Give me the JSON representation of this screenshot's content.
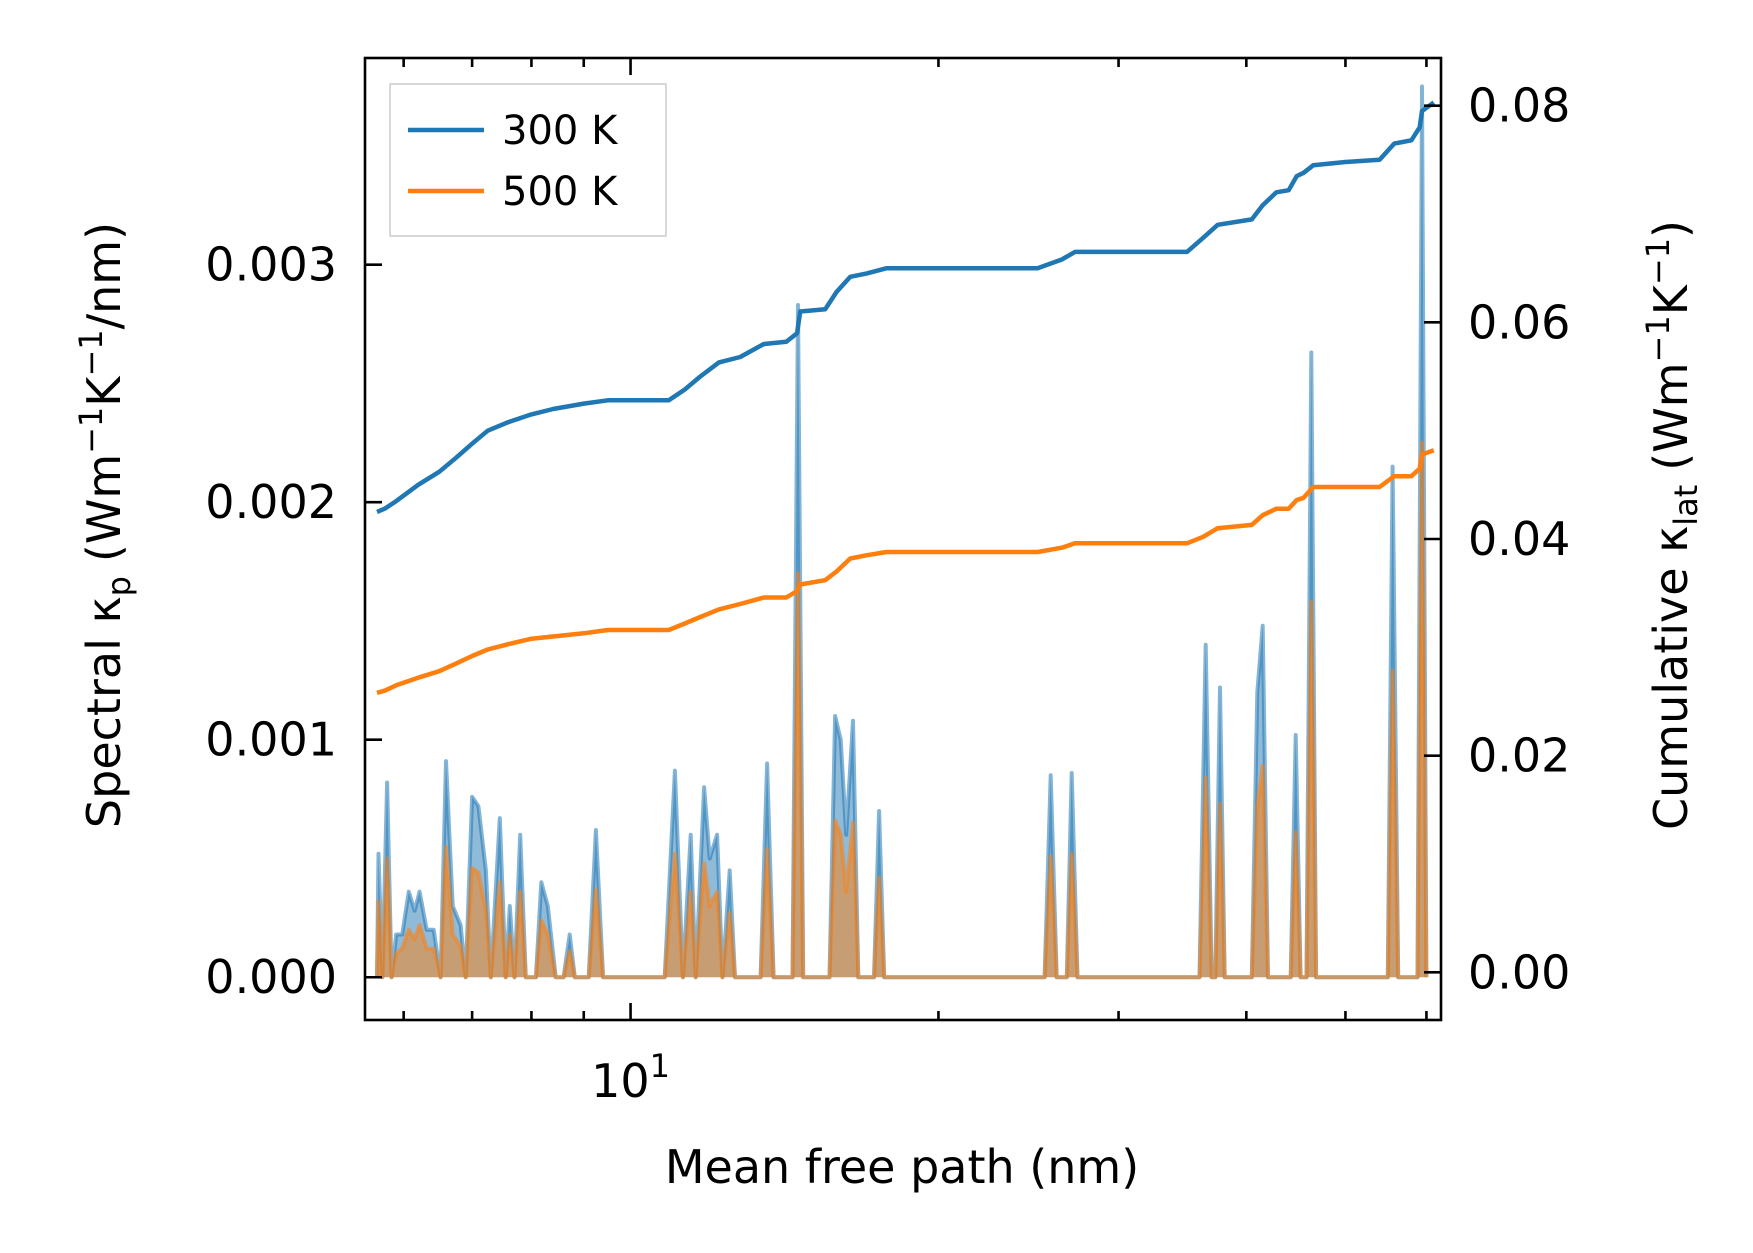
{
  "chart_data": {
    "type": "line",
    "xscale": "log",
    "xlabel": "Mean free path (nm)",
    "xlim": [
      5.5,
      62
    ],
    "x_ticks": [
      {
        "value": 10,
        "base": "10",
        "exp": "1"
      }
    ],
    "x_minor_ticks": [
      6,
      7,
      8,
      9,
      20,
      30,
      40,
      50,
      60
    ],
    "ylabel_left": {
      "main": "Spectral κ",
      "sub": "p",
      "units": [
        "(Wm",
        "−1",
        "K",
        "−1",
        "/nm)"
      ]
    },
    "ylim_left": [
      -0.00018,
      0.00387
    ],
    "yticks_left": [
      "0.000",
      "0.001",
      "0.002",
      "0.003"
    ],
    "ylabel_right": {
      "main": "Cumulative κ",
      "sub": "lat",
      "units": [
        "(Wm",
        "−1",
        "K",
        "−1",
        ")"
      ]
    },
    "ylim_right": [
      -0.0044,
      0.0844
    ],
    "yticks_right": [
      "0.00",
      "0.02",
      "0.04",
      "0.06",
      "0.08"
    ],
    "legend": {
      "position": "top-left",
      "entries": [
        "300 K",
        "500 K"
      ]
    },
    "spectral_series": [
      {
        "name": "300 K spectral",
        "color": "#1f77b4",
        "points": [
          [
            5.65,
            0
          ],
          [
            5.67,
            0.00052
          ],
          [
            5.72,
            0
          ],
          [
            5.78,
            0.00082
          ],
          [
            5.84,
            0
          ],
          [
            5.9,
            0.00018
          ],
          [
            5.98,
            0.00018
          ],
          [
            6.07,
            0.00036
          ],
          [
            6.15,
            0.00028
          ],
          [
            6.22,
            0.00036
          ],
          [
            6.32,
            0.0002
          ],
          [
            6.42,
            0.0002
          ],
          [
            6.52,
            0
          ],
          [
            6.6,
            0.00091
          ],
          [
            6.7,
            0.0003
          ],
          [
            6.82,
            0.00022
          ],
          [
            6.9,
            0
          ],
          [
            7.0,
            0.00076
          ],
          [
            7.1,
            0.00072
          ],
          [
            7.22,
            0.00045
          ],
          [
            7.3,
            0
          ],
          [
            7.45,
            0.00067
          ],
          [
            7.55,
            0
          ],
          [
            7.62,
            0.0003
          ],
          [
            7.7,
            0
          ],
          [
            7.8,
            0.0006
          ],
          [
            7.9,
            0
          ],
          [
            8.08,
            0
          ],
          [
            8.18,
            0.0004
          ],
          [
            8.3,
            0.0003
          ],
          [
            8.45,
            0
          ],
          [
            8.6,
            0
          ],
          [
            8.72,
            0.00018
          ],
          [
            8.82,
            0
          ],
          [
            9.1,
            0
          ],
          [
            9.25,
            0.00062
          ],
          [
            9.4,
            0
          ],
          [
            10.8,
            0
          ],
          [
            11.05,
            0.00087
          ],
          [
            11.25,
            0
          ],
          [
            11.45,
            0.0006
          ],
          [
            11.58,
            0
          ],
          [
            11.8,
            0.0008
          ],
          [
            11.95,
            0.0005
          ],
          [
            12.15,
            0.0006
          ],
          [
            12.3,
            0
          ],
          [
            12.5,
            0.00045
          ],
          [
            12.65,
            0
          ],
          [
            13.4,
            0
          ],
          [
            13.6,
            0.0009
          ],
          [
            13.8,
            0
          ],
          [
            14.4,
            0
          ],
          [
            14.58,
            0.00283
          ],
          [
            14.75,
            0
          ],
          [
            15.65,
            0
          ],
          [
            15.85,
            0.0011
          ],
          [
            16.05,
            0.001
          ],
          [
            16.25,
            0.0006
          ],
          [
            16.5,
            0.00108
          ],
          [
            16.7,
            0
          ],
          [
            17.3,
            0
          ],
          [
            17.5,
            0.0007
          ],
          [
            17.7,
            0
          ],
          [
            25.4,
            0
          ],
          [
            25.75,
            0.00085
          ],
          [
            26.1,
            0
          ],
          [
            26.7,
            0
          ],
          [
            27.0,
            0.00086
          ],
          [
            27.35,
            0
          ],
          [
            36.0,
            0
          ],
          [
            36.5,
            0.0014
          ],
          [
            37.0,
            0
          ],
          [
            37.3,
            0
          ],
          [
            37.7,
            0.00122
          ],
          [
            38.1,
            0
          ],
          [
            40.5,
            0
          ],
          [
            41.0,
            0.0012
          ],
          [
            41.5,
            0.00148
          ],
          [
            42.0,
            0
          ],
          [
            44.2,
            0
          ],
          [
            44.7,
            0.00102
          ],
          [
            45.2,
            0
          ],
          [
            45.8,
            0
          ],
          [
            46.3,
            0.00263
          ],
          [
            46.8,
            0
          ],
          [
            55.0,
            0
          ],
          [
            55.6,
            0.00215
          ],
          [
            56.3,
            0
          ],
          [
            58.8,
            0
          ],
          [
            59.4,
            0.00375
          ],
          [
            60.0,
            0
          ]
        ]
      },
      {
        "name": "500 K spectral",
        "color": "#ff7f0e",
        "points": [
          [
            5.65,
            0
          ],
          [
            5.67,
            0.00032
          ],
          [
            5.72,
            0
          ],
          [
            5.78,
            0.0005
          ],
          [
            5.84,
            0
          ],
          [
            5.9,
            0.0001
          ],
          [
            5.98,
            0.00012
          ],
          [
            6.07,
            0.0002
          ],
          [
            6.15,
            0.00016
          ],
          [
            6.22,
            0.00022
          ],
          [
            6.32,
            0.00012
          ],
          [
            6.42,
            0.00012
          ],
          [
            6.52,
            0
          ],
          [
            6.6,
            0.00055
          ],
          [
            6.7,
            0.00018
          ],
          [
            6.82,
            0.00013
          ],
          [
            6.9,
            0
          ],
          [
            7.0,
            0.00046
          ],
          [
            7.1,
            0.00044
          ],
          [
            7.22,
            0.00028
          ],
          [
            7.3,
            0
          ],
          [
            7.45,
            0.0004
          ],
          [
            7.55,
            0
          ],
          [
            7.62,
            0.00018
          ],
          [
            7.7,
            0
          ],
          [
            7.8,
            0.00036
          ],
          [
            7.9,
            0
          ],
          [
            8.08,
            0
          ],
          [
            8.18,
            0.00024
          ],
          [
            8.3,
            0.00018
          ],
          [
            8.45,
            0
          ],
          [
            8.6,
            0
          ],
          [
            8.72,
            0.00011
          ],
          [
            8.82,
            0
          ],
          [
            9.1,
            0
          ],
          [
            9.25,
            0.00037
          ],
          [
            9.4,
            0
          ],
          [
            10.8,
            0
          ],
          [
            11.05,
            0.00052
          ],
          [
            11.25,
            0
          ],
          [
            11.45,
            0.00036
          ],
          [
            11.58,
            0
          ],
          [
            11.8,
            0.00048
          ],
          [
            11.95,
            0.0003
          ],
          [
            12.15,
            0.00036
          ],
          [
            12.3,
            0
          ],
          [
            12.5,
            0.00027
          ],
          [
            12.65,
            0
          ],
          [
            13.4,
            0
          ],
          [
            13.6,
            0.00054
          ],
          [
            13.8,
            0
          ],
          [
            14.4,
            0
          ],
          [
            14.58,
            0.0017
          ],
          [
            14.75,
            0
          ],
          [
            15.65,
            0
          ],
          [
            15.85,
            0.00066
          ],
          [
            16.05,
            0.0006
          ],
          [
            16.25,
            0.00036
          ],
          [
            16.5,
            0.00065
          ],
          [
            16.7,
            0
          ],
          [
            17.3,
            0
          ],
          [
            17.5,
            0.00042
          ],
          [
            17.7,
            0
          ],
          [
            25.4,
            0
          ],
          [
            25.75,
            0.00051
          ],
          [
            26.1,
            0
          ],
          [
            26.7,
            0
          ],
          [
            27.0,
            0.00052
          ],
          [
            27.35,
            0
          ],
          [
            36.0,
            0
          ],
          [
            36.5,
            0.00084
          ],
          [
            37.0,
            0
          ],
          [
            37.3,
            0
          ],
          [
            37.7,
            0.00073
          ],
          [
            38.1,
            0
          ],
          [
            40.5,
            0
          ],
          [
            41.0,
            0.00072
          ],
          [
            41.5,
            0.00089
          ],
          [
            42.0,
            0
          ],
          [
            44.2,
            0
          ],
          [
            44.7,
            0.00061
          ],
          [
            45.2,
            0
          ],
          [
            45.8,
            0
          ],
          [
            46.3,
            0.00158
          ],
          [
            46.8,
            0
          ],
          [
            55.0,
            0
          ],
          [
            55.6,
            0.00129
          ],
          [
            56.3,
            0
          ],
          [
            58.8,
            0
          ],
          [
            59.4,
            0.00225
          ],
          [
            60.0,
            0
          ]
        ]
      }
    ],
    "cumulative_series": [
      {
        "name": "300 K",
        "color": "#1f77b4",
        "points": [
          [
            5.65,
            0.0425
          ],
          [
            5.75,
            0.0428
          ],
          [
            5.9,
            0.0435
          ],
          [
            6.2,
            0.045
          ],
          [
            6.5,
            0.0462
          ],
          [
            6.75,
            0.0475
          ],
          [
            7.0,
            0.0488
          ],
          [
            7.25,
            0.05
          ],
          [
            7.6,
            0.0508
          ],
          [
            8.0,
            0.0515
          ],
          [
            8.4,
            0.052
          ],
          [
            9.0,
            0.0525
          ],
          [
            9.5,
            0.0528
          ],
          [
            10.2,
            0.0528
          ],
          [
            10.9,
            0.0528
          ],
          [
            11.3,
            0.0538
          ],
          [
            11.7,
            0.055
          ],
          [
            12.2,
            0.0563
          ],
          [
            12.8,
            0.0568
          ],
          [
            13.5,
            0.058
          ],
          [
            14.2,
            0.0582
          ],
          [
            14.55,
            0.059
          ],
          [
            14.65,
            0.061
          ],
          [
            15.5,
            0.0612
          ],
          [
            15.9,
            0.0628
          ],
          [
            16.4,
            0.0642
          ],
          [
            17.0,
            0.0645
          ],
          [
            17.8,
            0.065
          ],
          [
            20,
            0.065
          ],
          [
            22,
            0.065
          ],
          [
            25,
            0.065
          ],
          [
            26.4,
            0.0658
          ],
          [
            27.2,
            0.0665
          ],
          [
            30,
            0.0665
          ],
          [
            35,
            0.0665
          ],
          [
            36.3,
            0.0678
          ],
          [
            37.5,
            0.069
          ],
          [
            40.5,
            0.0695
          ],
          [
            41.5,
            0.0708
          ],
          [
            42.8,
            0.072
          ],
          [
            44,
            0.0722
          ],
          [
            44.8,
            0.0735
          ],
          [
            45.5,
            0.0738
          ],
          [
            46.5,
            0.0745
          ],
          [
            50,
            0.0748
          ],
          [
            54,
            0.075
          ],
          [
            55.8,
            0.0765
          ],
          [
            58,
            0.0768
          ],
          [
            59.1,
            0.078
          ],
          [
            59.4,
            0.0795
          ],
          [
            61,
            0.0803
          ]
        ]
      },
      {
        "name": "500 K",
        "color": "#ff7f0e",
        "points": [
          [
            5.65,
            0.0258
          ],
          [
            5.75,
            0.026
          ],
          [
            5.9,
            0.0265
          ],
          [
            6.2,
            0.0272
          ],
          [
            6.5,
            0.0278
          ],
          [
            6.75,
            0.0285
          ],
          [
            7.0,
            0.0292
          ],
          [
            7.25,
            0.0298
          ],
          [
            7.6,
            0.0303
          ],
          [
            8.0,
            0.0308
          ],
          [
            8.4,
            0.031
          ],
          [
            9.0,
            0.0313
          ],
          [
            9.5,
            0.0316
          ],
          [
            10.2,
            0.0316
          ],
          [
            10.9,
            0.0316
          ],
          [
            11.3,
            0.0322
          ],
          [
            11.7,
            0.0328
          ],
          [
            12.2,
            0.0335
          ],
          [
            12.8,
            0.034
          ],
          [
            13.5,
            0.0346
          ],
          [
            14.2,
            0.0346
          ],
          [
            14.55,
            0.0352
          ],
          [
            14.65,
            0.0358
          ],
          [
            15.5,
            0.0362
          ],
          [
            15.9,
            0.037
          ],
          [
            16.4,
            0.0382
          ],
          [
            17.0,
            0.0385
          ],
          [
            17.8,
            0.0388
          ],
          [
            20,
            0.0388
          ],
          [
            22,
            0.0388
          ],
          [
            25,
            0.0388
          ],
          [
            26.4,
            0.0392
          ],
          [
            27.2,
            0.0396
          ],
          [
            30,
            0.0396
          ],
          [
            35,
            0.0396
          ],
          [
            36.3,
            0.0402
          ],
          [
            37.5,
            0.041
          ],
          [
            40.5,
            0.0413
          ],
          [
            41.5,
            0.0422
          ],
          [
            42.8,
            0.0428
          ],
          [
            44,
            0.0428
          ],
          [
            44.8,
            0.0436
          ],
          [
            45.5,
            0.0438
          ],
          [
            46.5,
            0.0448
          ],
          [
            50,
            0.0448
          ],
          [
            54,
            0.0448
          ],
          [
            55.8,
            0.0458
          ],
          [
            58,
            0.0458
          ],
          [
            59.1,
            0.0465
          ],
          [
            59.4,
            0.0478
          ],
          [
            61,
            0.0482
          ]
        ]
      }
    ]
  }
}
